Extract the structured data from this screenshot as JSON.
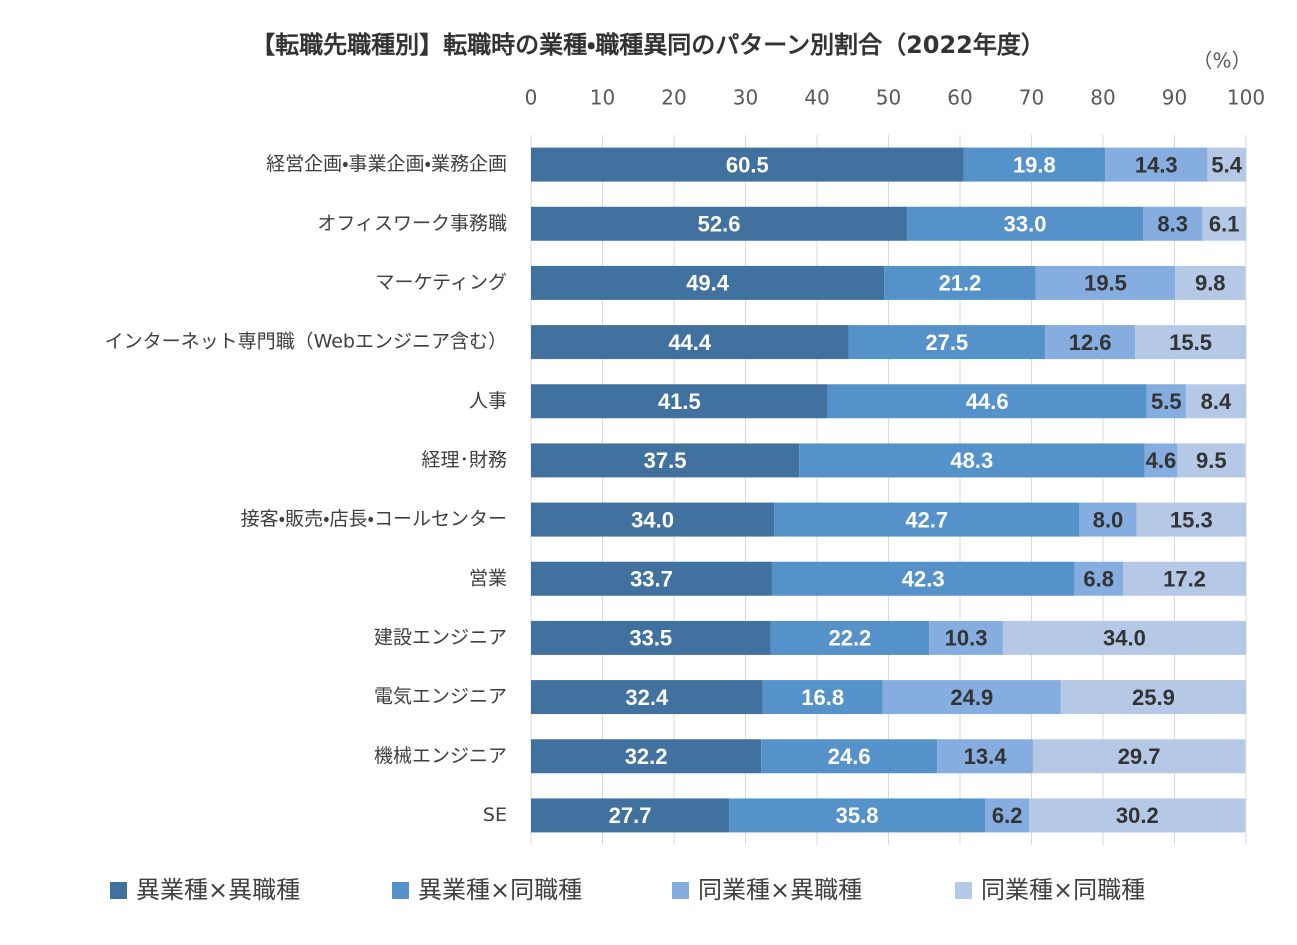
{
  "chart_data": {
    "type": "stacked-barh",
    "title": "【転職先職種別】転職時の業種・職種異同のパターン別割合（2022年度）",
    "x_axis_label": "（%）",
    "xlim": [
      0,
      100
    ],
    "xticks": [
      0,
      10,
      20,
      30,
      40,
      50,
      60,
      70,
      80,
      90,
      100
    ],
    "grid": true,
    "categories": [
      "経営企画・事業企画・業務企画",
      "オフィスワーク事務職",
      "マーケティング",
      "インターネット専門職（Webエンジニア含む）",
      "人事",
      "経理･財務",
      "接客・販売・店長・コールセンター",
      "営業",
      "建設エンジニア",
      "電気エンジニア",
      "機械エンジニア",
      "SE"
    ],
    "series": [
      {
        "name": "異業種×異職種",
        "color": "#41719f",
        "label_color": "#ffffff",
        "values": [
          60.5,
          52.6,
          49.4,
          44.4,
          41.5,
          37.5,
          34.0,
          33.7,
          33.5,
          32.4,
          32.2,
          27.7
        ],
        "value_labels": [
          "60.5",
          "52.6",
          "49.4",
          "44.4",
          "41.5",
          "37.5",
          "34.0",
          "33.7",
          "33.5",
          "32.4",
          "32.2",
          "27.7"
        ]
      },
      {
        "name": "異業種×同職種",
        "color": "#5592c9",
        "label_color": "#ffffff",
        "values": [
          19.8,
          33.0,
          21.2,
          27.5,
          44.6,
          48.3,
          42.7,
          42.3,
          22.2,
          16.8,
          24.6,
          35.8
        ],
        "value_labels": [
          "19.8",
          "33.0",
          "21.2",
          "27.5",
          "44.6",
          "48.3",
          "42.7",
          "42.3",
          "22.2",
          "16.8",
          "24.6",
          "35.8"
        ]
      },
      {
        "name": "同業種×異職種",
        "color": "#86ade0",
        "label_color": "#333333",
        "values": [
          14.3,
          8.3,
          19.5,
          12.6,
          5.5,
          4.6,
          8.0,
          6.8,
          10.3,
          24.9,
          13.4,
          6.2
        ],
        "value_labels": [
          "14.3",
          "8.3",
          "19.5",
          "12.6",
          "5.5",
          "4.6",
          "8.0",
          "6.8",
          "10.3",
          "24.9",
          "13.4",
          "6.2"
        ]
      },
      {
        "name": "同業種×同職種",
        "color": "#b5c9e7",
        "label_color": "#333333",
        "values": [
          5.4,
          6.1,
          9.8,
          15.5,
          8.4,
          9.5,
          15.3,
          17.2,
          34.0,
          25.9,
          29.7,
          30.2
        ],
        "value_labels": [
          "5.4",
          "6.1",
          "9.8",
          "15.5",
          "8.4",
          "9.5",
          "15.3",
          "17.2",
          "34.0",
          "25.9",
          "29.7",
          "30.2"
        ]
      }
    ]
  }
}
